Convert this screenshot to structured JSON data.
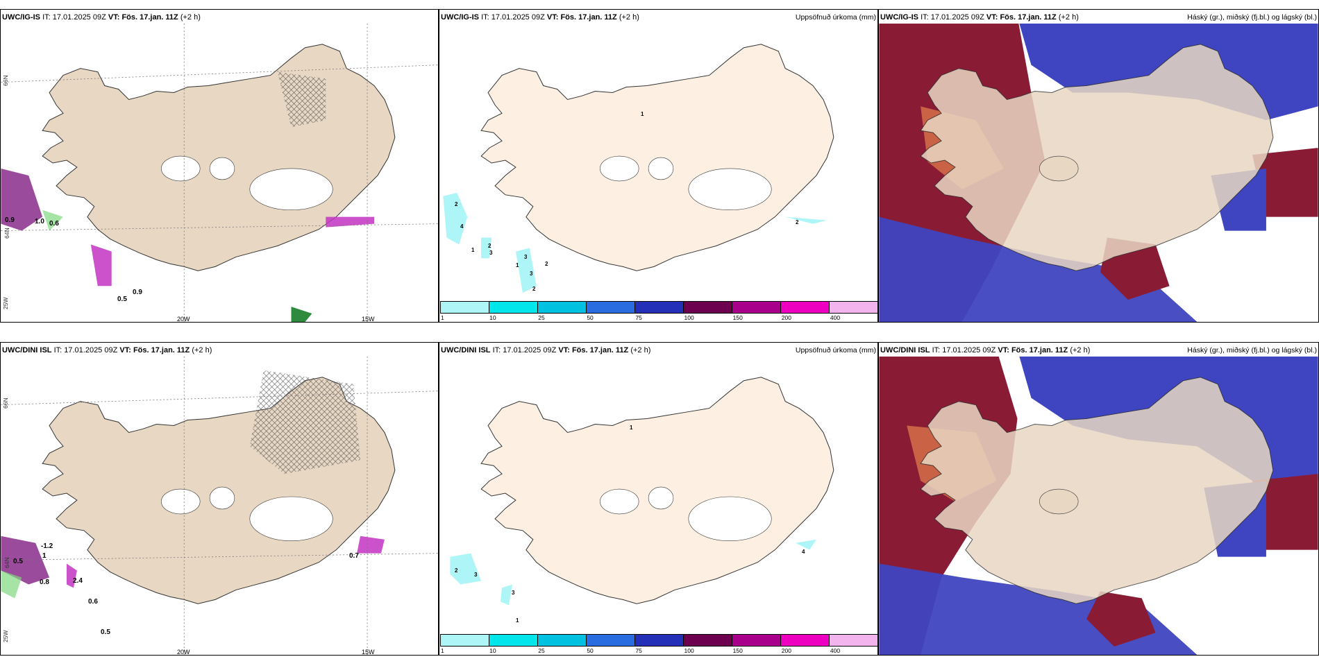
{
  "panels": [
    {
      "model": "UWC/IG-IS",
      "it": "17.01.2025 09Z",
      "vt": "Fös. 17.jan. 11Z",
      "lead": "(+2 h)",
      "right": ""
    },
    {
      "model": "UWC/IG-IS",
      "it": "17.01.2025 09Z",
      "vt": "Fös. 17.jan. 11Z",
      "lead": "(+2 h)",
      "right": "Uppsöfnuð úrkoma (mm)"
    },
    {
      "model": "UWC/IG-IS",
      "it": "17.01.2025 09Z",
      "vt": "Fös. 17.jan. 11Z",
      "lead": "(+2 h)",
      "right": "Háský (gr.), miðský (fj.bl.) og lágský (bl.)"
    },
    {
      "model": "UWC/DINI ISL",
      "it": "17.01.2025 09Z",
      "vt": "Fös. 17.jan. 11Z",
      "lead": "(+2 h)",
      "right": ""
    },
    {
      "model": "UWC/DINI ISL",
      "it": "17.01.2025 09Z",
      "vt": "Fös. 17.jan. 11Z",
      "lead": "(+2 h)",
      "right": "Uppsöfnuð úrkoma (mm)"
    },
    {
      "model": "UWC/DINI ISL",
      "it": "17.01.2025 09Z",
      "vt": "Fös. 17.jan. 11Z",
      "lead": "(+2 h)",
      "right": "Háský (gr.), miðský (fj.bl.) og lágský (bl.)"
    }
  ],
  "labels": {
    "it": "IT:",
    "vt": "VT:",
    "lon20": "20W",
    "lon15": "15W",
    "lat66": "66N",
    "lat64": "64N",
    "lon25": "25W"
  },
  "colorbar": {
    "ticks": [
      "1",
      "10",
      "25",
      "50",
      "75",
      "100",
      "150",
      "200",
      "400"
    ],
    "colors": [
      "#aef5f7",
      "#00e6ea",
      "#00c2e0",
      "#2a6de0",
      "#2430b8",
      "#6e0050",
      "#a8008a",
      "#ee00c0",
      "#f3b4ee"
    ]
  },
  "panel1_values": [
    "0.9",
    "1.0",
    "0.6",
    "0.5",
    "0.9"
  ],
  "panel4_values": [
    "-1.2",
    "1",
    "0.5",
    "0.8",
    "2.4",
    "0.6",
    "0.5",
    "0.7"
  ],
  "panel2_values": [
    "1",
    "2",
    "4",
    "1",
    "2",
    "3",
    "1",
    "3",
    "2",
    "3",
    "2",
    "2"
  ],
  "panel5_values": [
    "1",
    "2",
    "3",
    "3",
    "1",
    "4"
  ],
  "colors": {
    "land": "#e8d7c3",
    "land_precip": "#fdf0e2",
    "cloud_high": "#8a1b35",
    "cloud_mid": "#d9754a",
    "cloud_low": "#3f45c0",
    "cloud_low2": "#6b7be0",
    "cyan": "#7ee8f0",
    "magenta": "#c234c2",
    "green": "#7fd97f"
  }
}
